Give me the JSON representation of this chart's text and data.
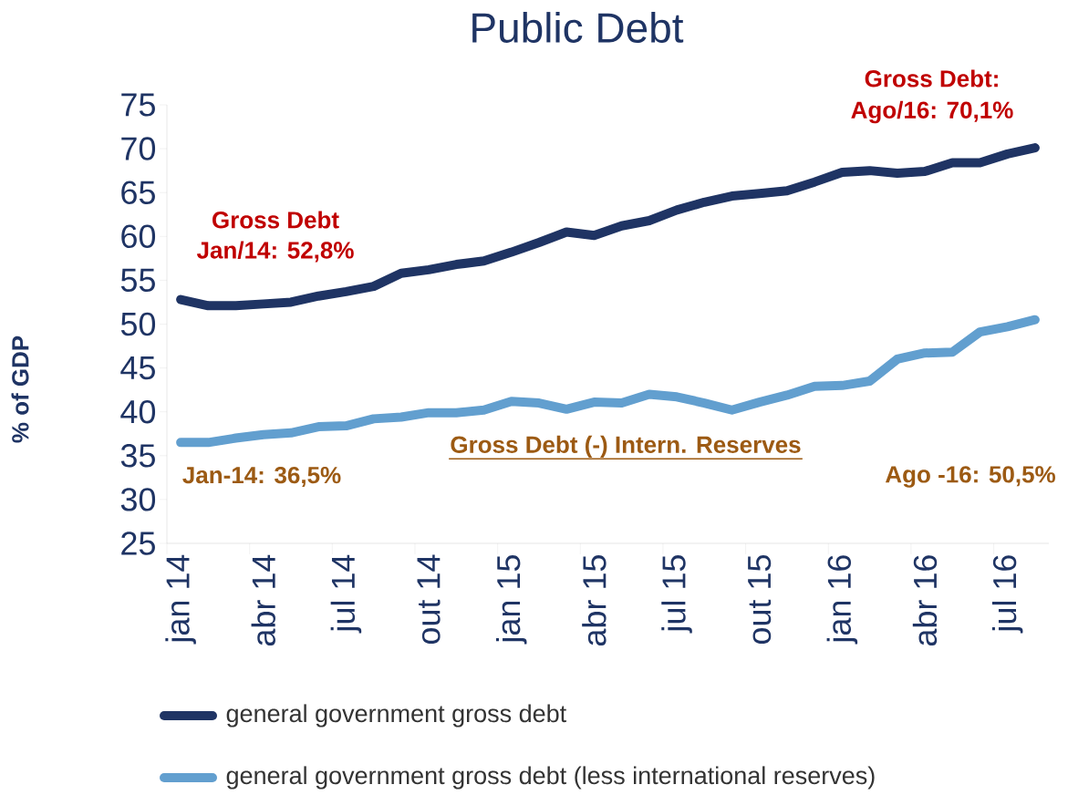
{
  "chart_data": {
    "type": "line",
    "title": "Public Debt",
    "ylabel": "% of GDP",
    "categories": [
      "jan 14",
      null,
      null,
      "abr 14",
      null,
      null,
      "jul 14",
      null,
      null,
      "out 14",
      null,
      null,
      "jan 15",
      null,
      null,
      "abr 15",
      null,
      null,
      "jul 15",
      null,
      null,
      "out 15",
      null,
      null,
      "jan 16",
      null,
      null,
      "abr 16",
      null,
      null,
      "jul 16",
      null
    ],
    "series": [
      {
        "name": "general government gross debt",
        "color": "#1f3464",
        "values": [
          52.8,
          52.1,
          52.1,
          52.3,
          52.5,
          53.2,
          53.7,
          54.3,
          55.8,
          56.2,
          56.8,
          57.2,
          58.2,
          59.3,
          60.5,
          60.1,
          61.2,
          61.8,
          63.0,
          63.9,
          64.6,
          64.9,
          65.2,
          66.2,
          67.3,
          67.5,
          67.2,
          67.4,
          68.4,
          68.4,
          69.4,
          70.1
        ]
      },
      {
        "name": "general government gross debt (less international reserves)",
        "color": "#629fcf",
        "values": [
          36.5,
          36.5,
          37.0,
          37.4,
          37.6,
          38.3,
          38.4,
          39.2,
          39.4,
          39.9,
          39.9,
          40.2,
          41.2,
          41.0,
          40.3,
          41.1,
          41.0,
          42.0,
          41.7,
          41.0,
          40.2,
          41.1,
          41.9,
          42.9,
          43.0,
          43.5,
          46.0,
          46.7,
          46.8,
          49.1,
          49.7,
          50.5
        ]
      }
    ],
    "ylim": [
      25,
      75
    ],
    "yticks": [
      25,
      30,
      35,
      40,
      45,
      50,
      55,
      60,
      65,
      70,
      75
    ],
    "annotations": [
      "Gross Debt",
      "Jan/14: 52,8%",
      "Gross Debt:",
      "Ago/16: 70,1%",
      "Gross Debt  (-) Intern. Reserves",
      "Jan-14: 36,5%",
      "Ago -16: 50,5%"
    ],
    "legend": "bottom",
    "marker": "none",
    "line_style": "solid"
  }
}
